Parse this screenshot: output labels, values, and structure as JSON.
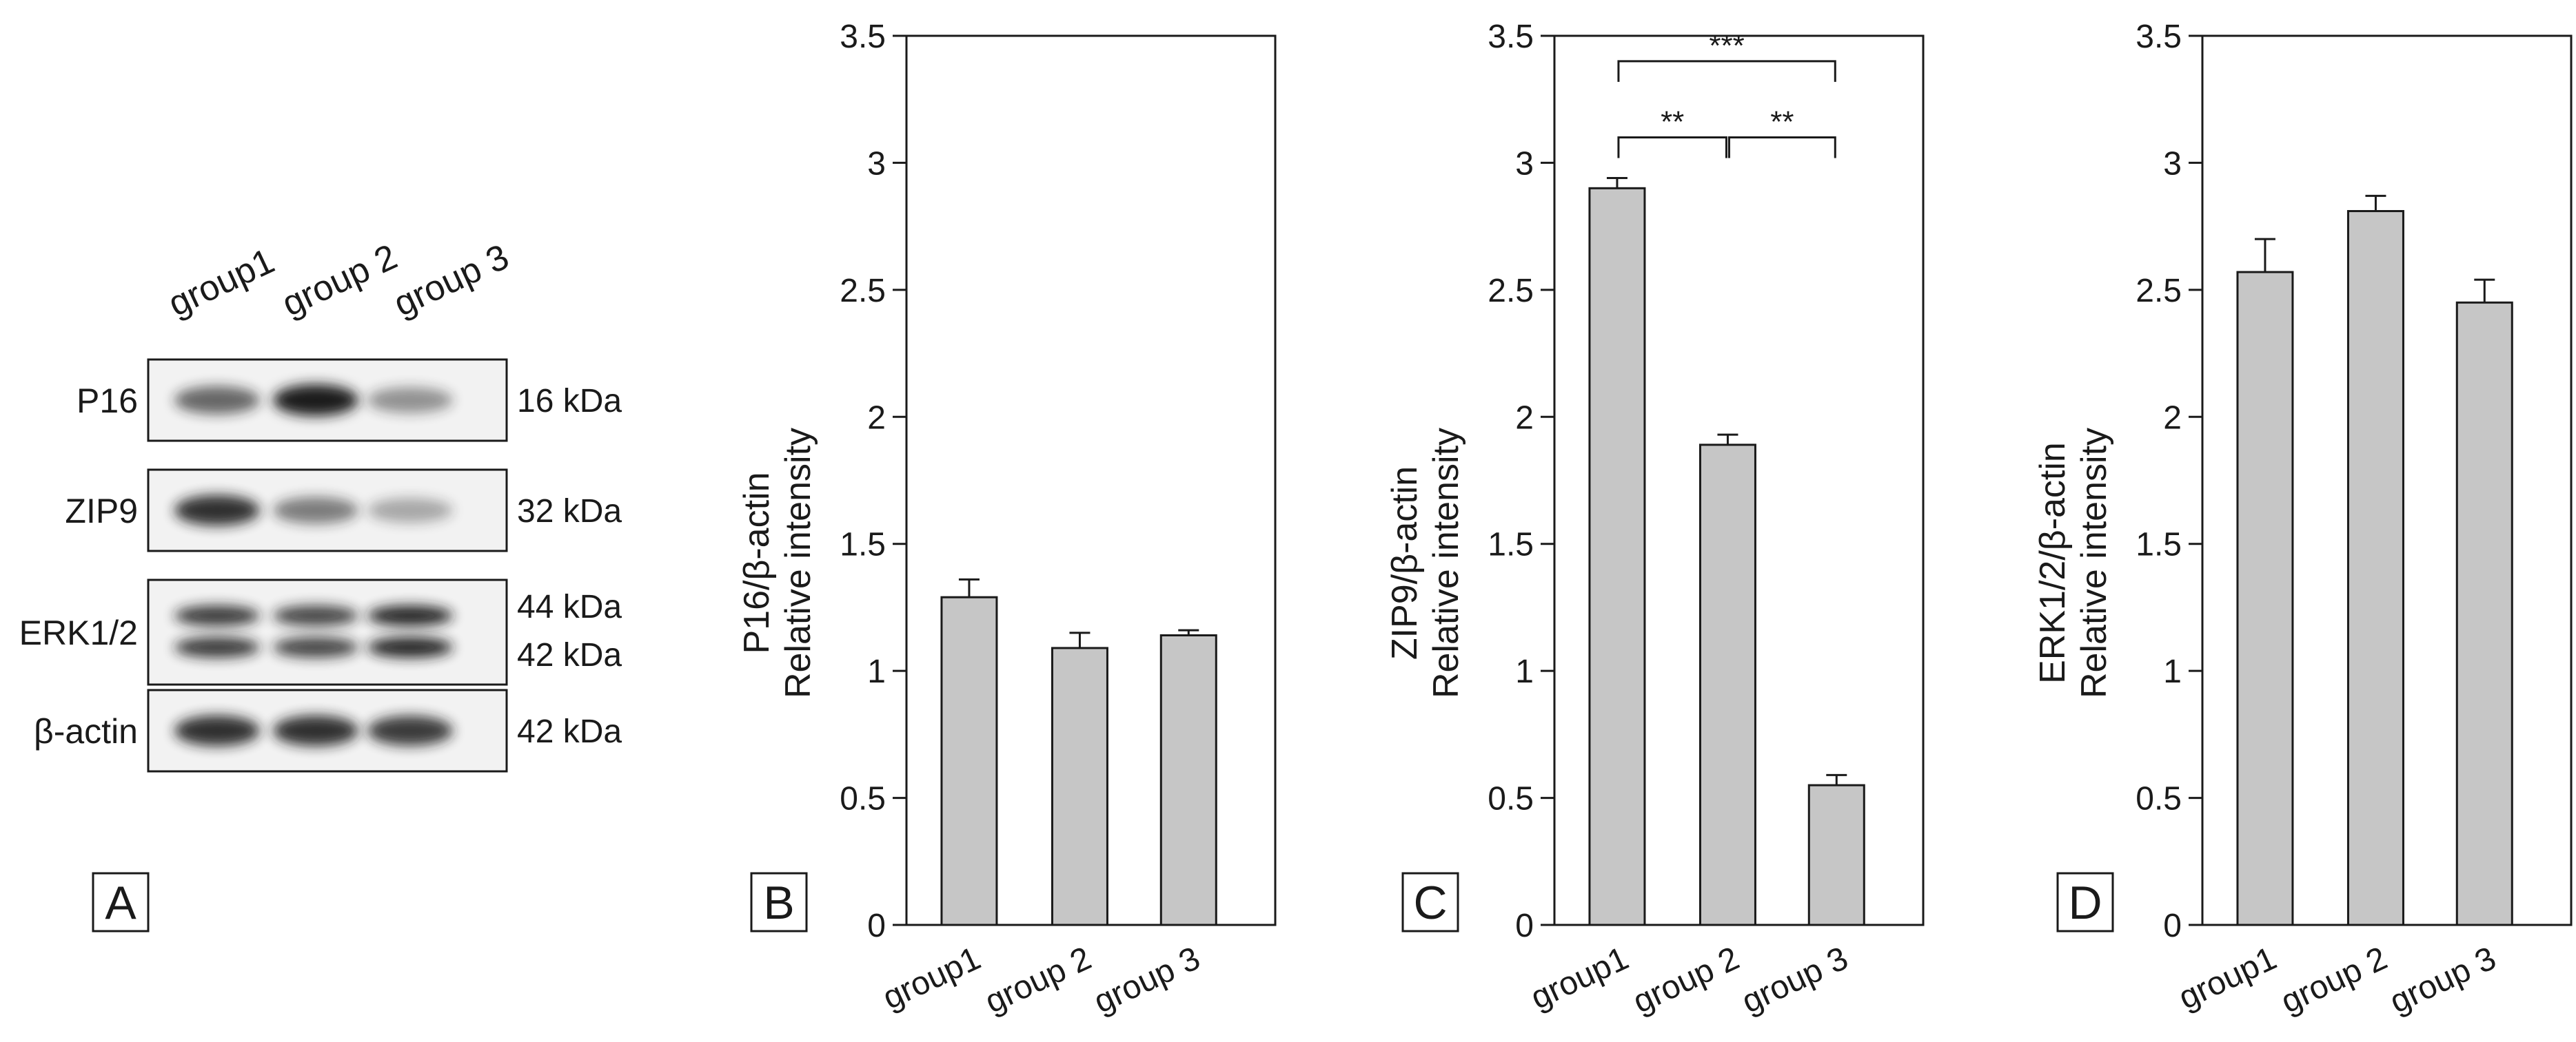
{
  "figure": {
    "panel_labels": [
      "A",
      "B",
      "C",
      "D"
    ]
  },
  "blot": {
    "lanes": [
      "group1",
      "group 2",
      "group 3"
    ],
    "rows": [
      {
        "protein": "P16",
        "kda": [
          "16 kDa"
        ],
        "bands": 1,
        "intensity": [
          0.65,
          1.0,
          0.45
        ]
      },
      {
        "protein": "ZIP9",
        "kda": [
          "32 kDa"
        ],
        "bands": 1,
        "intensity": [
          0.9,
          0.55,
          0.35
        ]
      },
      {
        "protein": "ERK1/2",
        "kda": [
          "44 kDa",
          "42 kDa"
        ],
        "bands": 2,
        "intensity": [
          0.85,
          0.8,
          0.95
        ]
      },
      {
        "protein": "β-actin",
        "kda": [
          "42 kDa"
        ],
        "bands": 1,
        "intensity": [
          0.9,
          0.9,
          0.85
        ]
      }
    ],
    "colors": {
      "band": "#1e1e1e",
      "membrane": "#f2f2f2"
    }
  },
  "chart_data": [
    {
      "panel": "B",
      "type": "bar",
      "categories": [
        "group1",
        "group 2",
        "group 3"
      ],
      "values": [
        1.29,
        1.09,
        1.14
      ],
      "errors": [
        0.07,
        0.06,
        0.02
      ],
      "ylabel": [
        "P16/β-actin",
        "Relative intensity"
      ],
      "ylim": [
        0,
        3.5
      ],
      "yticks": [
        "0",
        "0.5",
        "1",
        "1.5",
        "2",
        "2.5",
        "3",
        "3.5"
      ],
      "significance": [],
      "bar_color": "#c6c6c6"
    },
    {
      "panel": "C",
      "type": "bar",
      "categories": [
        "group1",
        "group 2",
        "group 3"
      ],
      "values": [
        2.9,
        1.89,
        0.55
      ],
      "errors": [
        0.04,
        0.04,
        0.04
      ],
      "ylabel": [
        "ZIP9/β-actin",
        "Relative intensity"
      ],
      "ylim": [
        0,
        3.5
      ],
      "yticks": [
        "0",
        "0.5",
        "1",
        "1.5",
        "2",
        "2.5",
        "3",
        "3.5"
      ],
      "significance": [
        {
          "from": 0,
          "to": 2,
          "label": "***",
          "level": 3.4
        },
        {
          "from": 0,
          "to": 1,
          "label": "**",
          "level": 3.1
        },
        {
          "from": 1,
          "to": 2,
          "label": "**",
          "level": 3.1
        }
      ],
      "bar_color": "#c6c6c6"
    },
    {
      "panel": "D",
      "type": "bar",
      "categories": [
        "group1",
        "group 2",
        "group 3"
      ],
      "values": [
        2.57,
        2.81,
        2.45
      ],
      "errors": [
        0.13,
        0.06,
        0.09
      ],
      "ylabel": [
        "ERK1/2/β-actin",
        "Relative intensity"
      ],
      "ylim": [
        0,
        3.5
      ],
      "yticks": [
        "0",
        "0.5",
        "1",
        "1.5",
        "2",
        "2.5",
        "3",
        "3.5"
      ],
      "significance": [],
      "bar_color": "#c6c6c6"
    }
  ]
}
